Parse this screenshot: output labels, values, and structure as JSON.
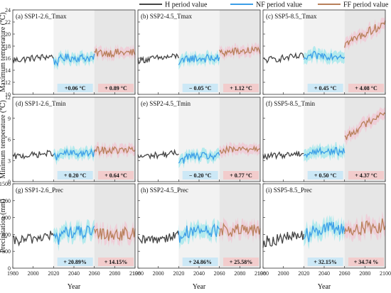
{
  "legend": [
    {
      "label": "H period value",
      "color": "#444444"
    },
    {
      "label": "NF period value",
      "color": "#3b9ee8"
    },
    {
      "label": "FF period value",
      "color": "#b8805a"
    }
  ],
  "colors": {
    "hist": "#444444",
    "nf": "#3b9ee8",
    "ff": "#b8805a",
    "nf_box": "#cce8f6",
    "ff_box": "#f2cccc",
    "nf_shade": "#f2f2f2",
    "ff_shade": "#e6e6e6",
    "band_nf": "#7fe3ea",
    "band_ff": "#f6b9cc"
  },
  "ylabels": [
    "Maximum temperature (℃)",
    "Minimum temperature (℃)",
    "Precipitation (mm)"
  ],
  "xlabel": "Year",
  "chart_data": [
    {
      "type": "line",
      "title": "(a) SSP1-2.6_Tmax",
      "ylim": [
        10,
        24
      ],
      "yticks": [
        10,
        12,
        14,
        16,
        18,
        20,
        22,
        24
      ],
      "xlim": [
        1980,
        2100
      ],
      "xticks": [
        1980,
        2000,
        2020,
        2040,
        2060,
        2080,
        2100
      ],
      "periods": {
        "hist": [
          1980,
          2020
        ],
        "nf": [
          2021,
          2060
        ],
        "ff": [
          2061,
          2100
        ]
      },
      "hist_mean": 16.0,
      "nf_mean": 16.06,
      "ff_mean": 16.89,
      "band": 0.8,
      "noise": 0.7,
      "trend_ff": 0.0,
      "change_nf": "+0.06 °C",
      "change_ff": "+ 0.89 °C"
    },
    {
      "type": "line",
      "title": "(b) SSP2-4.5_Tmax",
      "ylim": [
        10,
        24
      ],
      "yticks": [
        10,
        12,
        14,
        16,
        18,
        20,
        22,
        24
      ],
      "xlim": [
        1980,
        2100
      ],
      "xticks": [
        1980,
        2000,
        2020,
        2040,
        2060,
        2080,
        2100
      ],
      "periods": {
        "hist": [
          1980,
          2020
        ],
        "nf": [
          2021,
          2060
        ],
        "ff": [
          2061,
          2100
        ]
      },
      "hist_mean": 16.0,
      "nf_mean": 15.95,
      "ff_mean": 17.12,
      "band": 0.8,
      "noise": 0.7,
      "trend_ff": 0.5,
      "change_nf": "− 0.05 °C",
      "change_ff": "+ 1.12 °C"
    },
    {
      "type": "line",
      "title": "(c) SSP5-8.5_Tmax",
      "ylim": [
        10,
        24
      ],
      "yticks": [
        10,
        12,
        14,
        16,
        18,
        20,
        22,
        24
      ],
      "xlim": [
        1980,
        2100
      ],
      "xticks": [
        1980,
        2000,
        2020,
        2040,
        2060,
        2080,
        2100
      ],
      "periods": {
        "hist": [
          1980,
          2020
        ],
        "nf": [
          2021,
          2060
        ],
        "ff": [
          2061,
          2100
        ]
      },
      "hist_mean": 16.0,
      "nf_mean": 16.45,
      "ff_mean": 20.08,
      "band": 0.9,
      "noise": 0.7,
      "trend_ff": 3.5,
      "change_nf": "+ 0.45 °C",
      "change_ff": "+ 4.08 °C"
    },
    {
      "type": "line",
      "title": "(d) SSP1-2.6_Tmin",
      "ylim": [
        0,
        12
      ],
      "yticks": [
        0,
        3,
        6,
        9,
        12
      ],
      "xlim": [
        1980,
        2100
      ],
      "xticks": [
        1980,
        2000,
        2020,
        2040,
        2060,
        2080,
        2100
      ],
      "periods": {
        "hist": [
          1980,
          2020
        ],
        "nf": [
          2021,
          2060
        ],
        "ff": [
          2061,
          2100
        ]
      },
      "hist_mean": 3.8,
      "nf_mean": 4.0,
      "ff_mean": 4.44,
      "band": 0.7,
      "noise": 0.55,
      "trend_ff": 0.0,
      "change_nf": "+ 0.20 °C",
      "change_ff": "+ 0.64 °C"
    },
    {
      "type": "line",
      "title": "(e) SSP2-4.5_Tmin",
      "ylim": [
        0,
        12
      ],
      "yticks": [
        0,
        3,
        6,
        9,
        12
      ],
      "xlim": [
        1980,
        2100
      ],
      "xticks": [
        1980,
        2000,
        2020,
        2040,
        2060,
        2080,
        2100
      ],
      "periods": {
        "hist": [
          1980,
          2020
        ],
        "nf": [
          2021,
          2060
        ],
        "ff": [
          2061,
          2100
        ]
      },
      "hist_mean": 3.8,
      "nf_mean": 3.6,
      "ff_mean": 4.57,
      "band": 0.7,
      "noise": 0.55,
      "trend_ff": 0.5,
      "change_nf": "− 0.20 °C",
      "change_ff": "+ 0.77 °C"
    },
    {
      "type": "line",
      "title": "(f) SSP5-8.5_Tmin",
      "ylim": [
        0,
        12
      ],
      "yticks": [
        0,
        3,
        6,
        9,
        12
      ],
      "xlim": [
        1980,
        2100
      ],
      "xticks": [
        1980,
        2000,
        2020,
        2040,
        2060,
        2080,
        2100
      ],
      "periods": {
        "hist": [
          1980,
          2020
        ],
        "nf": [
          2021,
          2060
        ],
        "ff": [
          2061,
          2100
        ]
      },
      "hist_mean": 3.8,
      "nf_mean": 4.3,
      "ff_mean": 8.17,
      "band": 0.8,
      "noise": 0.55,
      "trend_ff": 3.8,
      "change_nf": "+ 0.50 °C",
      "change_ff": "+ 4.37 °C"
    },
    {
      "type": "line",
      "title": "(g) SSP1-2.6_Prec",
      "ylim": [
        0,
        1500
      ],
      "yticks": [
        0,
        300,
        600,
        900,
        1200,
        1500
      ],
      "xlim": [
        1980,
        2100
      ],
      "xticks": [
        1980,
        2000,
        2020,
        2040,
        2060,
        2080,
        2100
      ],
      "periods": {
        "hist": [
          1980,
          2020
        ],
        "nf": [
          2021,
          2060
        ],
        "ff": [
          2061,
          2100
        ]
      },
      "hist_mean": 530,
      "nf_mean": 640,
      "ff_mean": 605,
      "band": 120,
      "noise": 120,
      "trend_ff": 0,
      "change_nf": "+ 20.89%",
      "change_ff": "+ 14.15%"
    },
    {
      "type": "line",
      "title": "(h) SSP2-4.5_Prec",
      "ylim": [
        0,
        1500
      ],
      "yticks": [
        0,
        300,
        600,
        900,
        1200,
        1500
      ],
      "xlim": [
        1980,
        2100
      ],
      "xticks": [
        1980,
        2000,
        2020,
        2040,
        2060,
        2080,
        2100
      ],
      "periods": {
        "hist": [
          1980,
          2020
        ],
        "nf": [
          2021,
          2060
        ],
        "ff": [
          2061,
          2100
        ]
      },
      "hist_mean": 530,
      "nf_mean": 662,
      "ff_mean": 666,
      "band": 120,
      "noise": 120,
      "trend_ff": 0,
      "change_nf": "+ 24.86%",
      "change_ff": "+ 25.58%"
    },
    {
      "type": "line",
      "title": "(i) SSP5-8.5_Prec",
      "ylim": [
        0,
        1500
      ],
      "yticks": [
        0,
        300,
        600,
        900,
        1200,
        1500
      ],
      "xlim": [
        1980,
        2100
      ],
      "xticks": [
        1980,
        2000,
        2020,
        2040,
        2060,
        2080,
        2100
      ],
      "periods": {
        "hist": [
          1980,
          2020
        ],
        "nf": [
          2021,
          2060
        ],
        "ff": [
          2061,
          2100
        ]
      },
      "hist_mean": 530,
      "nf_mean": 700,
      "ff_mean": 714,
      "band": 130,
      "noise": 130,
      "trend_ff": 100,
      "change_nf": "+ 32.15%",
      "change_ff": "+ 34.74 %"
    }
  ]
}
